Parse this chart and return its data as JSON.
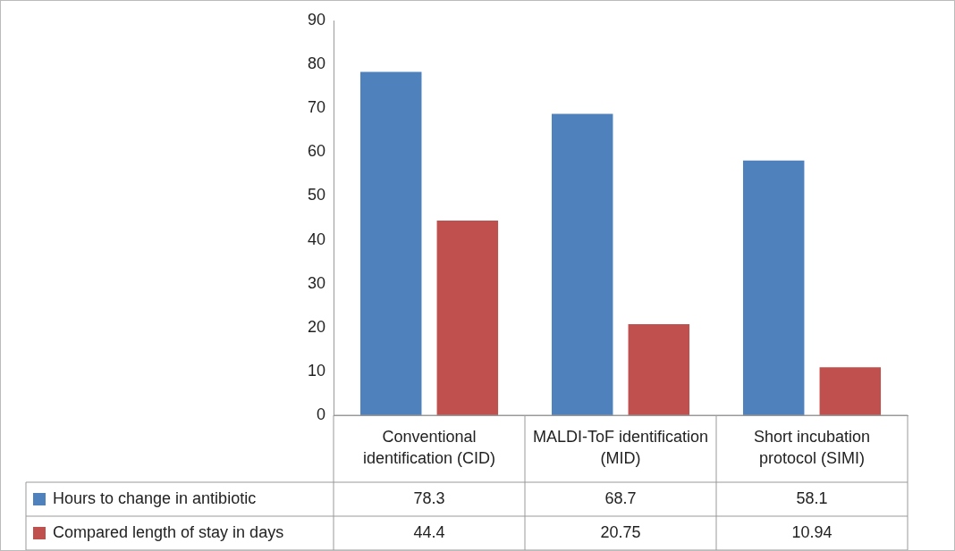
{
  "chart_data": {
    "type": "bar",
    "categories": [
      "Conventional identification (CID)",
      "MALDI-ToF identification (MID)",
      "Short incubation protocol (SIMI)"
    ],
    "series": [
      {
        "name": "Hours to change in antibiotic",
        "color": "#4f81bd",
        "values": [
          78.3,
          68.7,
          58.1
        ]
      },
      {
        "name": "Compared length of stay in days",
        "color": "#c0504d",
        "values": [
          44.4,
          20.75,
          10.94
        ]
      }
    ],
    "ylim": [
      0,
      90
    ],
    "yticks": [
      0,
      10,
      20,
      30,
      40,
      50,
      60,
      70,
      80,
      90
    ],
    "grid": false,
    "data_labels": true,
    "legend": "bottom"
  }
}
